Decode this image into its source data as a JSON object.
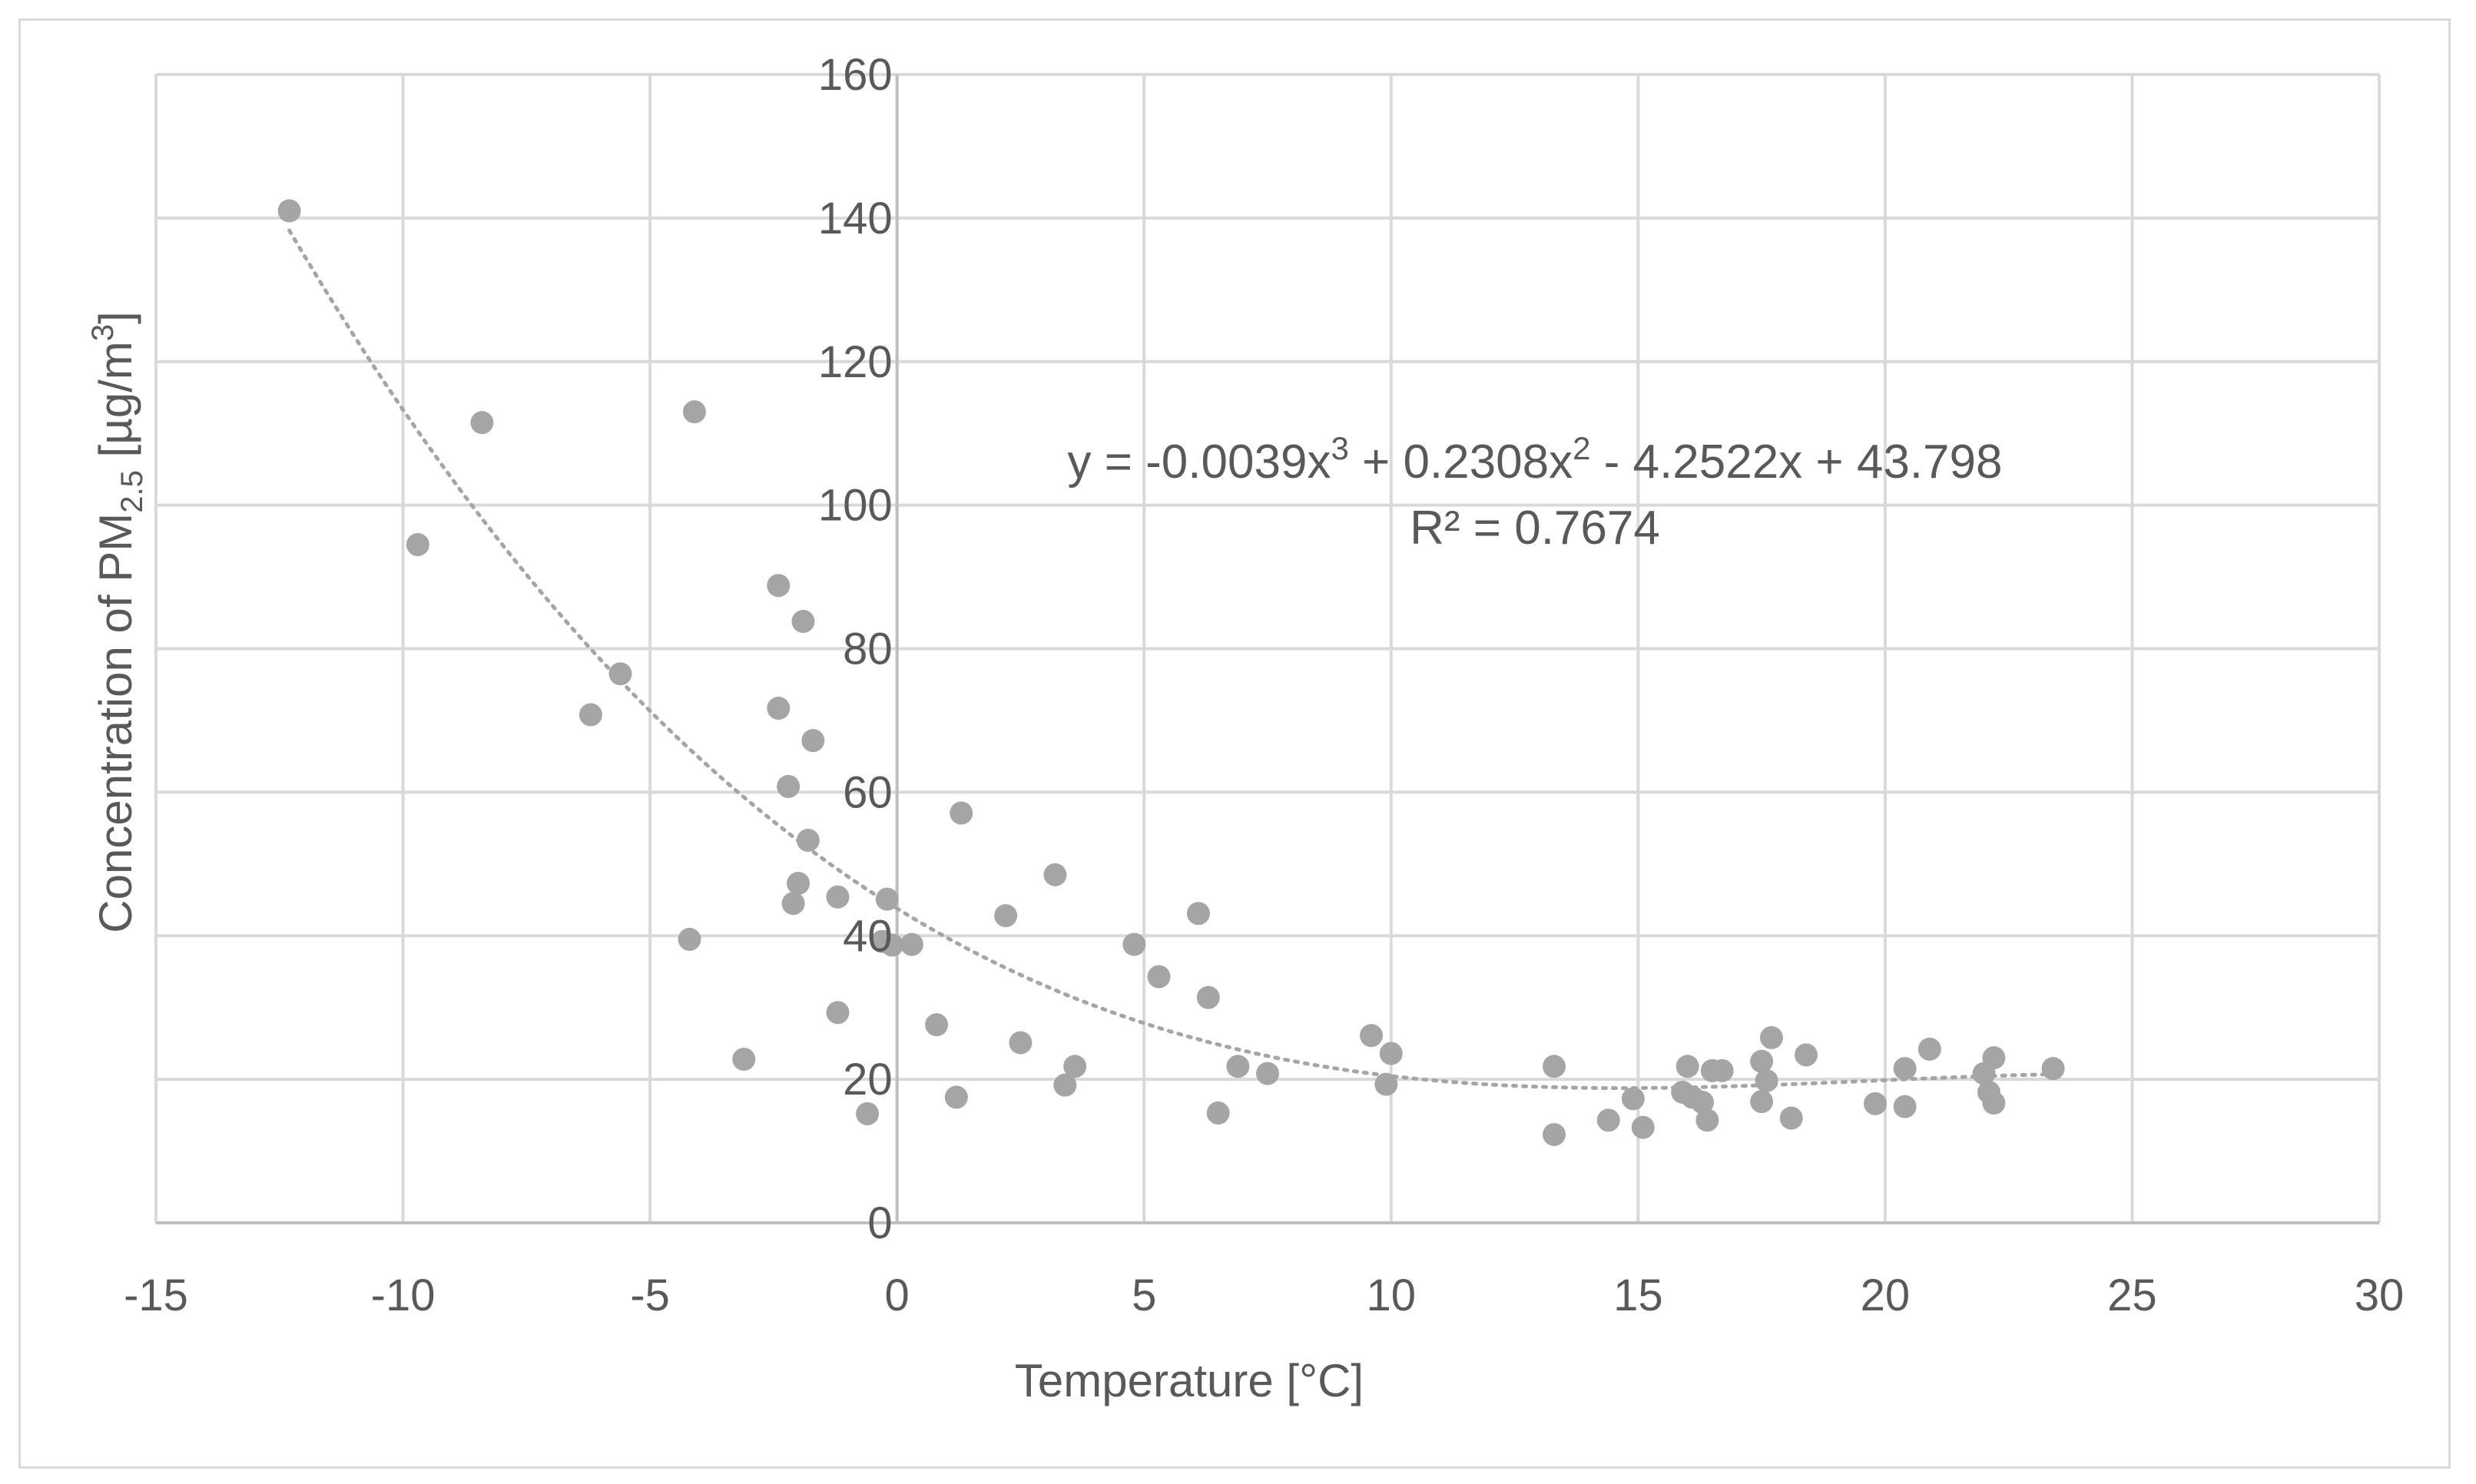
{
  "chart_data": {
    "type": "scatter",
    "title": "",
    "xlabel": "Temperature [°C]",
    "ylabel": {
      "prefix": "Concentration of PM",
      "subscript": "2.5",
      "unit_prefix": " [µg/m",
      "superscript": "3",
      "unit_suffix": "]"
    },
    "xlim": [
      -15,
      30
    ],
    "ylim": [
      0,
      160
    ],
    "xticks": [
      -15,
      -10,
      -5,
      0,
      5,
      10,
      15,
      20,
      25,
      30
    ],
    "yticks": [
      0,
      20,
      40,
      60,
      80,
      100,
      120,
      140,
      160
    ],
    "grid": true,
    "colors": {
      "points": "#a5a5a5",
      "trendline": "#a5a5a5",
      "grid": "#d9d9d9",
      "text": "#595959"
    },
    "series": [
      {
        "name": "PM2.5",
        "points": [
          [
            -12.3,
            141
          ],
          [
            -9.7,
            94.5
          ],
          [
            -8.4,
            111.5
          ],
          [
            -6.2,
            70.8
          ],
          [
            -5.6,
            76.5
          ],
          [
            -4.2,
            39.5
          ],
          [
            -4.1,
            113
          ],
          [
            -3.1,
            22.8
          ],
          [
            -2.4,
            88.8
          ],
          [
            -2.4,
            71.7
          ],
          [
            -2.2,
            60.8
          ],
          [
            -2.1,
            44.5
          ],
          [
            -2.0,
            47.3
          ],
          [
            -1.9,
            83.8
          ],
          [
            -1.8,
            53.3
          ],
          [
            -1.7,
            67.2
          ],
          [
            -1.2,
            45.4
          ],
          [
            -1.2,
            29.3
          ],
          [
            -0.6,
            15.2
          ],
          [
            -0.3,
            39.2
          ],
          [
            -0.2,
            45.1
          ],
          [
            -0.1,
            38.7
          ],
          [
            0.3,
            38.8
          ],
          [
            0.8,
            27.6
          ],
          [
            1.2,
            17.5
          ],
          [
            1.3,
            57.1
          ],
          [
            2.2,
            42.8
          ],
          [
            2.5,
            25.1
          ],
          [
            3.2,
            48.5
          ],
          [
            3.4,
            19.2
          ],
          [
            3.6,
            21.8
          ],
          [
            4.8,
            38.8
          ],
          [
            5.3,
            34.3
          ],
          [
            6.1,
            43.1
          ],
          [
            6.3,
            31.4
          ],
          [
            6.5,
            15.3
          ],
          [
            6.9,
            21.8
          ],
          [
            7.5,
            20.8
          ],
          [
            9.6,
            26.1
          ],
          [
            9.9,
            19.3
          ],
          [
            10.0,
            23.6
          ],
          [
            13.3,
            12.3
          ],
          [
            13.3,
            21.8
          ],
          [
            14.4,
            14.3
          ],
          [
            14.9,
            17.3
          ],
          [
            15.1,
            13.3
          ],
          [
            15.9,
            18.2
          ],
          [
            16.0,
            21.8
          ],
          [
            16.1,
            17.5
          ],
          [
            16.3,
            16.8
          ],
          [
            16.4,
            14.3
          ],
          [
            16.5,
            21.2
          ],
          [
            16.7,
            21.2
          ],
          [
            17.5,
            16.9
          ],
          [
            17.5,
            22.5
          ],
          [
            17.6,
            19.8
          ],
          [
            17.7,
            25.8
          ],
          [
            18.1,
            14.6
          ],
          [
            18.4,
            23.4
          ],
          [
            19.8,
            16.6
          ],
          [
            20.4,
            16.2
          ],
          [
            20.4,
            21.5
          ],
          [
            20.9,
            24.2
          ],
          [
            22.0,
            20.8
          ],
          [
            22.1,
            18.2
          ],
          [
            22.2,
            16.7
          ],
          [
            22.2,
            23.0
          ],
          [
            23.4,
            21.5
          ]
        ]
      }
    ],
    "trendline": {
      "type": "polynomial-3",
      "coefficients": [
        -0.0039,
        0.2308,
        -4.2522,
        43.798
      ],
      "x_range": [
        -12.3,
        23.4
      ]
    },
    "equation": {
      "y_eq": "y = -0.0039x",
      "sup1": "3",
      "mid": " + 0.2308x",
      "sup2": "2",
      "tail": " - 4.2522x + 43.798",
      "r2": "R² = 0.7674"
    }
  }
}
